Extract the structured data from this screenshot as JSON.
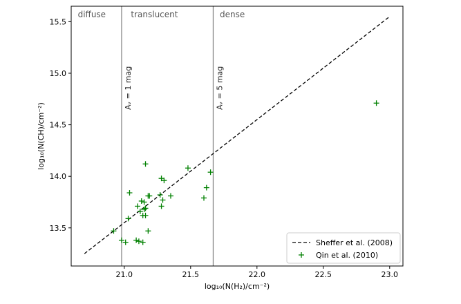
{
  "chart_data": {
    "type": "scatter",
    "xlabel": "log₁₀(N(H₂)/cm⁻²)",
    "ylabel": "log₁₀(N(CH)/cm⁻²)",
    "xlim": [
      20.6,
      23.1
    ],
    "ylim": [
      13.13,
      15.65
    ],
    "xticks": [
      21.0,
      21.5,
      22.0,
      22.5,
      23.0
    ],
    "yticks": [
      13.5,
      14.0,
      14.5,
      15.0,
      15.5
    ],
    "xtick_labels": [
      "21.0",
      "21.5",
      "22.0",
      "22.5",
      "23.0"
    ],
    "ytick_labels": [
      "13.5",
      "14.0",
      "14.5",
      "15.0",
      "15.5"
    ],
    "grid": false,
    "legend_position": "bottom-right",
    "regions": [
      {
        "label": "diffuse",
        "x": 20.65
      },
      {
        "label": "translucent",
        "x": 21.05
      },
      {
        "label": "dense",
        "x": 21.72
      }
    ],
    "vertical_lines": [
      {
        "x": 20.98,
        "label": "Aᵥ = 1 mag",
        "color": "#808080"
      },
      {
        "x": 21.67,
        "label": "Aᵥ = 5 mag",
        "color": "#808080"
      }
    ],
    "series": [
      {
        "name": "Sheffer et al. (2008)",
        "kind": "line",
        "style": "dashed",
        "color": "#000000",
        "points": [
          [
            20.7,
            13.25
          ],
          [
            23.0,
            15.55
          ]
        ]
      },
      {
        "name": "Qin et al. (2010)",
        "kind": "scatter",
        "marker": "+",
        "color": "#008000",
        "points": [
          [
            20.92,
            13.47
          ],
          [
            20.98,
            13.38
          ],
          [
            21.01,
            13.36
          ],
          [
            21.03,
            13.59
          ],
          [
            21.04,
            13.84
          ],
          [
            21.09,
            13.38
          ],
          [
            21.1,
            13.71
          ],
          [
            21.11,
            13.37
          ],
          [
            21.12,
            13.66
          ],
          [
            21.13,
            13.76
          ],
          [
            21.14,
            13.62
          ],
          [
            21.14,
            13.36
          ],
          [
            21.15,
            13.68
          ],
          [
            21.15,
            13.75
          ],
          [
            21.16,
            13.62
          ],
          [
            21.16,
            13.69
          ],
          [
            21.16,
            14.12
          ],
          [
            21.18,
            13.81
          ],
          [
            21.18,
            13.47
          ],
          [
            21.19,
            13.81
          ],
          [
            21.27,
            13.82
          ],
          [
            21.28,
            13.71
          ],
          [
            21.28,
            13.98
          ],
          [
            21.29,
            13.77
          ],
          [
            21.3,
            13.96
          ],
          [
            21.35,
            13.81
          ],
          [
            21.48,
            14.08
          ],
          [
            21.6,
            13.79
          ],
          [
            21.62,
            13.89
          ],
          [
            21.65,
            14.04
          ],
          [
            22.9,
            14.71
          ]
        ]
      }
    ]
  }
}
